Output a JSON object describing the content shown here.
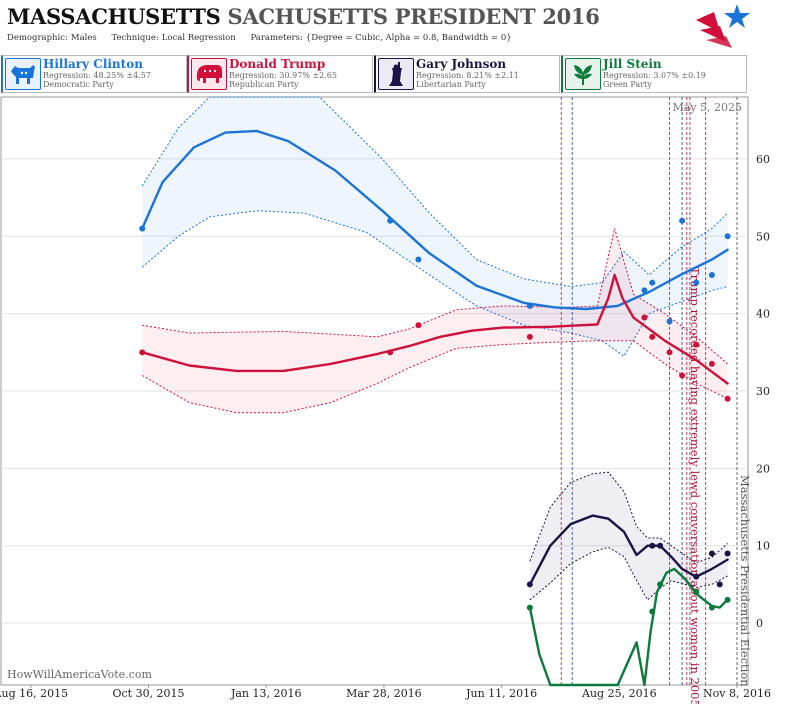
{
  "header": {
    "title_state": "MASSACHUSETTS",
    "title_race": "SACHUSETTS PRESIDENT 2016",
    "demographic_label": "Demographic:",
    "demographic_value": "Males",
    "technique_label": "Technique:",
    "technique_value": "Local Regression",
    "parameters_label": "Parameters:",
    "parameters_value": "{Degree = Cubic, Alpha = 0.8, Bandwidth = 0}"
  },
  "candidates": [
    {
      "name": "Hillary Clinton",
      "regression": "Regression: 48.25% ±4.57",
      "party": "Democratic Party",
      "color": "#1a74d8",
      "icon": "donkey-icon"
    },
    {
      "name": "Donald Trump",
      "regression": "Regression: 30.97% ±2.65",
      "party": "Republican Party",
      "color": "#d0103a",
      "icon": "elephant-icon"
    },
    {
      "name": "Gary Johnson",
      "regression": "Regression: 8.21% ±2.11",
      "party": "Libertarian Party",
      "color": "#1a1446",
      "icon": "liberty-statue-icon"
    },
    {
      "name": "Jill Stein",
      "regression": "Regression: 3.07% ±0.19",
      "party": "Green Party",
      "color": "#0c7a3a",
      "icon": "leaf-icon"
    }
  ],
  "footer": {
    "watermark": "HowWillAmericaVote.com",
    "date_stamp": "May 5, 2025"
  },
  "chart_data": {
    "type": "line",
    "x_is_date": true,
    "xlim": [
      "2015-07-28",
      "2016-11-15"
    ],
    "ylim": [
      -8,
      68
    ],
    "y_ticks": [
      0,
      10,
      20,
      30,
      40,
      50,
      60
    ],
    "x_ticks": [
      "2015-08-16",
      "2015-10-30",
      "2016-01-13",
      "2016-03-28",
      "2016-06-11",
      "2016-08-25",
      "2016-11-08"
    ],
    "x_tick_labels": [
      "Aug 16, 2015",
      "Oct 30, 2015",
      "Jan 13, 2016",
      "Mar 28, 2016",
      "Jun 11, 2016",
      "Aug 25, 2016",
      "Nov 8, 2016"
    ],
    "grid": "horizontal",
    "series": [
      {
        "name": "Hillary Clinton",
        "color": "#1a74d8",
        "points": [
          [
            "2015-10-26",
            51
          ],
          [
            "2016-04-01",
            52
          ],
          [
            "2016-04-19",
            47
          ],
          [
            "2016-06-29",
            41
          ],
          [
            "2016-09-10",
            43
          ],
          [
            "2016-09-15",
            44
          ],
          [
            "2016-09-26",
            39
          ],
          [
            "2016-10-04",
            52
          ],
          [
            "2016-10-13",
            44
          ],
          [
            "2016-10-23",
            45
          ],
          [
            "2016-11-02",
            50
          ]
        ],
        "fit": [
          [
            "2015-10-26",
            51
          ],
          [
            "2015-11-08",
            57
          ],
          [
            "2015-11-28",
            61.5
          ],
          [
            "2015-12-18",
            63.4
          ],
          [
            "2016-01-07",
            63.6
          ],
          [
            "2016-01-27",
            62.3
          ],
          [
            "2016-02-26",
            58.5
          ],
          [
            "2016-03-27",
            53.3
          ],
          [
            "2016-04-26",
            47.8
          ],
          [
            "2016-05-26",
            43.6
          ],
          [
            "2016-06-25",
            41.4
          ],
          [
            "2016-07-15",
            40.8
          ],
          [
            "2016-08-04",
            40.6
          ],
          [
            "2016-08-24",
            41
          ],
          [
            "2016-09-13",
            42.8
          ],
          [
            "2016-10-03",
            45
          ],
          [
            "2016-10-23",
            47
          ],
          [
            "2016-11-02",
            48.25
          ]
        ],
        "upper": [
          [
            "2015-10-26",
            56.5
          ],
          [
            "2015-11-18",
            64
          ],
          [
            "2015-12-08",
            69
          ],
          [
            "2016-02-16",
            69
          ],
          [
            "2016-03-27",
            60
          ],
          [
            "2016-04-26",
            53
          ],
          [
            "2016-05-26",
            47
          ],
          [
            "2016-06-25",
            44.5
          ],
          [
            "2016-07-25",
            43.5
          ],
          [
            "2016-08-14",
            44
          ],
          [
            "2016-08-28",
            48
          ],
          [
            "2016-09-13",
            45
          ],
          [
            "2016-10-03",
            48.5
          ],
          [
            "2016-10-23",
            51
          ],
          [
            "2016-11-02",
            53
          ]
        ],
        "lower": [
          [
            "2015-10-26",
            46
          ],
          [
            "2015-11-18",
            50
          ],
          [
            "2015-12-08",
            52.5
          ],
          [
            "2016-01-07",
            53.3
          ],
          [
            "2016-02-06",
            53
          ],
          [
            "2016-03-17",
            50.5
          ],
          [
            "2016-04-26",
            45
          ],
          [
            "2016-05-26",
            41
          ],
          [
            "2016-06-25",
            38.5
          ],
          [
            "2016-07-25",
            37.5
          ],
          [
            "2016-08-14",
            36.5
          ],
          [
            "2016-08-28",
            34.5
          ],
          [
            "2016-09-13",
            40
          ],
          [
            "2016-10-03",
            41.5
          ],
          [
            "2016-10-23",
            43
          ],
          [
            "2016-11-02",
            43.5
          ]
        ]
      },
      {
        "name": "Donald Trump",
        "color": "#d0103a",
        "points": [
          [
            "2015-10-26",
            35
          ],
          [
            "2016-04-01",
            35
          ],
          [
            "2016-04-19",
            38.5
          ],
          [
            "2016-06-29",
            37
          ],
          [
            "2016-09-10",
            39.5
          ],
          [
            "2016-09-15",
            37
          ],
          [
            "2016-09-26",
            35
          ],
          [
            "2016-10-04",
            32
          ],
          [
            "2016-10-13",
            36
          ],
          [
            "2016-10-23",
            33.5
          ],
          [
            "2016-11-02",
            29
          ]
        ],
        "fit": [
          [
            "2015-10-26",
            35
          ],
          [
            "2015-11-25",
            33.3
          ],
          [
            "2015-12-25",
            32.6
          ],
          [
            "2016-01-24",
            32.6
          ],
          [
            "2016-02-23",
            33.5
          ],
          [
            "2016-03-24",
            34.8
          ],
          [
            "2016-04-13",
            35.8
          ],
          [
            "2016-05-03",
            37
          ],
          [
            "2016-05-23",
            37.8
          ],
          [
            "2016-06-12",
            38.2
          ],
          [
            "2016-07-12",
            38.3
          ],
          [
            "2016-08-01",
            38.5
          ],
          [
            "2016-08-11",
            38.6
          ],
          [
            "2016-08-18",
            42
          ],
          [
            "2016-08-22",
            45
          ],
          [
            "2016-08-27",
            42
          ],
          [
            "2016-09-03",
            39.5
          ],
          [
            "2016-09-23",
            36.5
          ],
          [
            "2016-10-13",
            34
          ],
          [
            "2016-11-02",
            30.97
          ]
        ],
        "upper": [
          [
            "2015-10-26",
            38.5
          ],
          [
            "2015-11-25",
            37.5
          ],
          [
            "2016-01-24",
            37.7
          ],
          [
            "2016-03-24",
            37
          ],
          [
            "2016-04-13",
            38
          ],
          [
            "2016-05-13",
            40.5
          ],
          [
            "2016-06-12",
            41
          ],
          [
            "2016-07-22",
            40.8
          ],
          [
            "2016-08-11",
            41
          ],
          [
            "2016-08-22",
            51
          ],
          [
            "2016-09-03",
            42.5
          ],
          [
            "2016-09-23",
            40
          ],
          [
            "2016-10-13",
            37
          ],
          [
            "2016-11-02",
            33.5
          ]
        ],
        "lower": [
          [
            "2015-10-26",
            32
          ],
          [
            "2015-11-25",
            28.5
          ],
          [
            "2015-12-25",
            27.2
          ],
          [
            "2016-01-24",
            27.2
          ],
          [
            "2016-02-23",
            28.5
          ],
          [
            "2016-03-24",
            31
          ],
          [
            "2016-04-13",
            33
          ],
          [
            "2016-05-13",
            35.5
          ],
          [
            "2016-06-12",
            36
          ],
          [
            "2016-07-12",
            36.3
          ],
          [
            "2016-08-11",
            36.5
          ],
          [
            "2016-08-22",
            36.5
          ],
          [
            "2016-09-03",
            36.5
          ],
          [
            "2016-09-23",
            33.5
          ],
          [
            "2016-10-13",
            31
          ],
          [
            "2016-11-02",
            29
          ]
        ]
      },
      {
        "name": "Gary Johnson",
        "color": "#1a1446",
        "points": [
          [
            "2016-06-29",
            5
          ],
          [
            "2016-09-15",
            10
          ],
          [
            "2016-09-20",
            10
          ],
          [
            "2016-10-13",
            6
          ],
          [
            "2016-10-23",
            9
          ],
          [
            "2016-10-28",
            5
          ],
          [
            "2016-11-02",
            9
          ]
        ],
        "fit": [
          [
            "2016-06-29",
            5
          ],
          [
            "2016-07-12",
            10
          ],
          [
            "2016-07-25",
            12.8
          ],
          [
            "2016-08-08",
            13.9
          ],
          [
            "2016-08-18",
            13.5
          ],
          [
            "2016-08-28",
            11.8
          ],
          [
            "2016-09-05",
            8.8
          ],
          [
            "2016-09-12",
            10
          ],
          [
            "2016-09-20",
            10
          ],
          [
            "2016-09-27",
            8.6
          ],
          [
            "2016-10-04",
            7
          ],
          [
            "2016-10-13",
            6
          ],
          [
            "2016-10-23",
            7
          ],
          [
            "2016-11-02",
            8.21
          ]
        ],
        "upper": [
          [
            "2016-06-29",
            8
          ],
          [
            "2016-07-12",
            15
          ],
          [
            "2016-07-25",
            18.2
          ],
          [
            "2016-08-08",
            19.3
          ],
          [
            "2016-08-18",
            19.5
          ],
          [
            "2016-08-28",
            17
          ],
          [
            "2016-09-05",
            12.5
          ],
          [
            "2016-09-12",
            11
          ],
          [
            "2016-09-20",
            11
          ],
          [
            "2016-09-27",
            10
          ],
          [
            "2016-10-13",
            7.8
          ],
          [
            "2016-10-23",
            8.5
          ],
          [
            "2016-11-02",
            10.3
          ]
        ],
        "lower": [
          [
            "2016-06-29",
            3
          ],
          [
            "2016-07-12",
            5.2
          ],
          [
            "2016-07-25",
            7.7
          ],
          [
            "2016-08-08",
            9.2
          ],
          [
            "2016-08-18",
            9.8
          ],
          [
            "2016-08-28",
            8.6
          ],
          [
            "2016-09-05",
            5.5
          ],
          [
            "2016-09-12",
            3
          ],
          [
            "2016-09-20",
            4.5
          ],
          [
            "2016-09-27",
            5.5
          ],
          [
            "2016-10-13",
            4.6
          ],
          [
            "2016-10-23",
            5
          ],
          [
            "2016-11-02",
            6.1
          ]
        ]
      },
      {
        "name": "Jill Stein",
        "color": "#0c7a3a",
        "points": [
          [
            "2016-06-29",
            2
          ],
          [
            "2016-09-15",
            1.5
          ],
          [
            "2016-09-20",
            5
          ],
          [
            "2016-10-13",
            4
          ],
          [
            "2016-10-23",
            2
          ],
          [
            "2016-11-02",
            3
          ]
        ],
        "fit": [
          [
            "2016-06-29",
            2
          ],
          [
            "2016-07-05",
            -4
          ],
          [
            "2016-07-12",
            -8
          ],
          [
            "2016-08-03",
            -10
          ],
          [
            "2016-08-24",
            -8
          ],
          [
            "2016-09-05",
            -2.5
          ],
          [
            "2016-09-10",
            -8
          ],
          [
            "2016-09-14",
            -1
          ],
          [
            "2016-09-18",
            4
          ],
          [
            "2016-09-24",
            6.5
          ],
          [
            "2016-09-29",
            7
          ],
          [
            "2016-10-06",
            5.7
          ],
          [
            "2016-10-13",
            3.8
          ],
          [
            "2016-10-23",
            2.2
          ],
          [
            "2016-10-28",
            2
          ],
          [
            "2016-11-02",
            3.07
          ]
        ],
        "upper": [],
        "lower": []
      }
    ],
    "events": [
      {
        "date": "2016-07-19",
        "color": "#b0103a",
        "label": ""
      },
      {
        "date": "2016-07-26",
        "color": "#1a3a9a",
        "label": ""
      },
      {
        "date": "2016-09-26",
        "color": "#b0103a",
        "label": ""
      },
      {
        "date": "2016-10-04",
        "color": "#1a3a9a",
        "label": ""
      },
      {
        "date": "2016-10-07",
        "color": "#b0103a",
        "label": "Trump recorded having extremely lewd conversation about women in 2005"
      },
      {
        "date": "2016-10-09",
        "color": "#b0103a",
        "label": ""
      },
      {
        "date": "2016-10-19",
        "color": "#b0103a",
        "label": ""
      },
      {
        "date": "2016-11-08",
        "color": "#444444",
        "label": "Massachusetts Presidential Election"
      }
    ]
  }
}
